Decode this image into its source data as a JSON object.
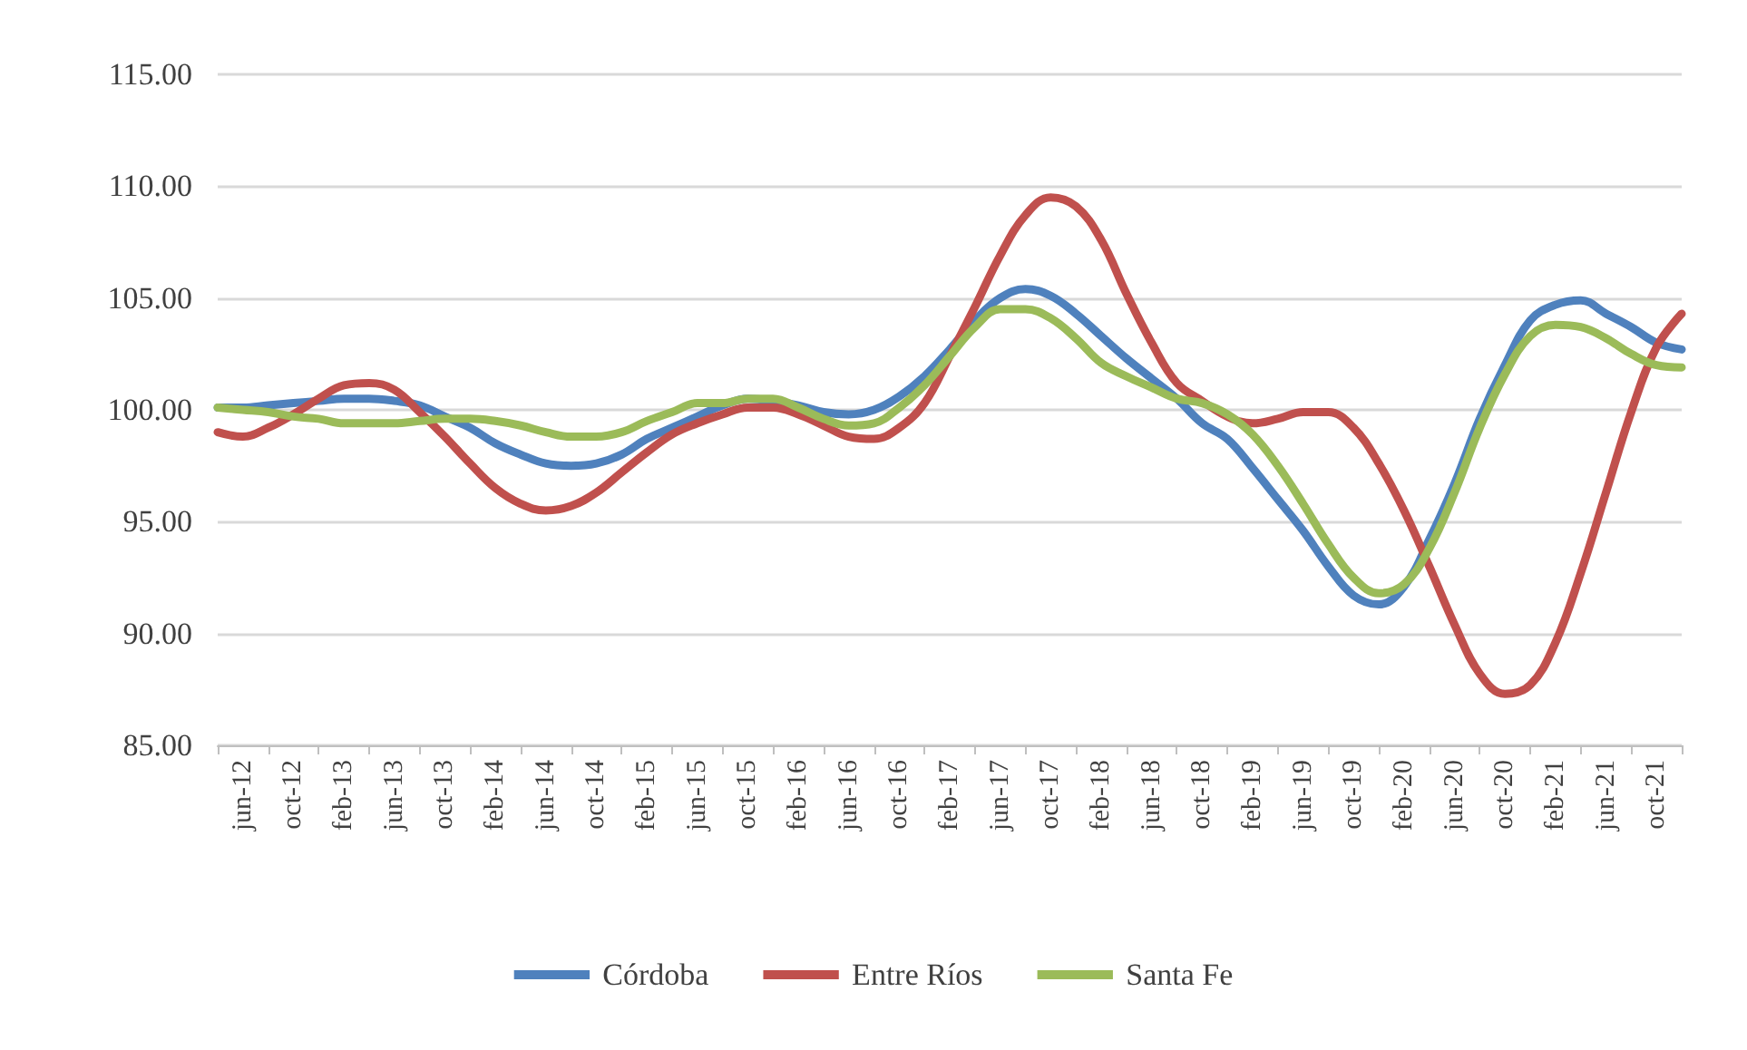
{
  "chart_data": {
    "type": "line",
    "categories": [
      null,
      "jun-12",
      null,
      "oct-12",
      null,
      "feb-13",
      null,
      "jun-13",
      null,
      "oct-13",
      null,
      "feb-14",
      null,
      "jun-14",
      null,
      "oct-14",
      null,
      "feb-15",
      null,
      "jun-15",
      null,
      "oct-15",
      null,
      "feb-16",
      null,
      "jun-16",
      null,
      "oct-16",
      null,
      "feb-17",
      null,
      "jun-17",
      null,
      "oct-17",
      null,
      "feb-18",
      null,
      "jun-18",
      null,
      "oct-18",
      null,
      "feb-19",
      null,
      "jun-19",
      null,
      "oct-19",
      null,
      "feb-20",
      null,
      "jun-20",
      null,
      "oct-20",
      null,
      "feb-21",
      null,
      "jun-21",
      null,
      "oct-21",
      null
    ],
    "series": [
      {
        "name": "Córdoba",
        "color": "#4f81bd",
        "values": [
          100.1,
          100.1,
          100.2,
          100.3,
          100.4,
          100.5,
          100.5,
          100.4,
          100.2,
          99.7,
          99.2,
          98.5,
          98.0,
          97.6,
          97.5,
          97.6,
          98.0,
          98.7,
          99.2,
          99.7,
          100.2,
          100.5,
          100.4,
          100.2,
          99.9,
          99.8,
          100.0,
          100.6,
          101.5,
          102.7,
          104.0,
          105.0,
          105.4,
          105.1,
          104.3,
          103.3,
          102.3,
          101.4,
          100.5,
          99.4,
          98.7,
          97.4,
          96.0,
          94.6,
          93.0,
          91.7,
          91.3,
          92.1,
          94.2,
          96.7,
          99.6,
          102.0,
          104.0,
          104.7,
          104.9,
          104.3,
          103.7,
          103.0,
          102.7
        ]
      },
      {
        "name": "Entre Ríos",
        "color": "#c0504d",
        "values": [
          99.0,
          98.8,
          99.2,
          99.8,
          100.5,
          101.1,
          101.2,
          100.9,
          99.9,
          98.8,
          97.6,
          96.5,
          95.8,
          95.5,
          95.7,
          96.3,
          97.2,
          98.1,
          98.9,
          99.4,
          99.8,
          100.1,
          100.1,
          99.8,
          99.3,
          98.8,
          98.7,
          99.2,
          100.3,
          102.4,
          104.6,
          106.9,
          108.7,
          109.5,
          109.1,
          107.6,
          105.2,
          103.0,
          101.2,
          100.4,
          99.7,
          99.4,
          99.6,
          99.9,
          99.9,
          99.2,
          97.6,
          95.5,
          93.0,
          90.4,
          88.2,
          87.3,
          87.7,
          89.6,
          92.7,
          96.3,
          99.9,
          102.8,
          104.3
        ]
      },
      {
        "name": "Santa Fe",
        "color": "#9bbb59",
        "values": [
          100.1,
          100.0,
          99.9,
          99.7,
          99.6,
          99.4,
          99.4,
          99.4,
          99.5,
          99.6,
          99.6,
          99.5,
          99.3,
          99.0,
          98.8,
          98.8,
          99.0,
          99.5,
          99.9,
          100.3,
          100.3,
          100.5,
          100.5,
          100.1,
          99.6,
          99.3,
          99.4,
          100.1,
          101.1,
          102.4,
          103.7,
          104.5,
          104.5,
          104.1,
          103.2,
          102.1,
          101.5,
          101.0,
          100.5,
          100.3,
          99.8,
          98.9,
          97.5,
          95.8,
          94.0,
          92.5,
          91.8,
          92.2,
          93.8,
          96.3,
          99.2,
          101.6,
          103.3,
          103.8,
          103.7,
          103.2,
          102.5,
          102.0,
          101.9
        ]
      }
    ],
    "ylim": [
      85,
      115
    ],
    "yticks": [
      {
        "value": 85,
        "label": "85.00"
      },
      {
        "value": 90,
        "label": "90.00"
      },
      {
        "value": 95,
        "label": "95.00"
      },
      {
        "value": 100,
        "label": "100.00"
      },
      {
        "value": 105,
        "label": "105.00"
      },
      {
        "value": 110,
        "label": "110.00"
      },
      {
        "value": 115,
        "label": "115.00"
      }
    ],
    "grid": "y",
    "legend": "bottom",
    "marker": "none",
    "line_style": "solid"
  }
}
